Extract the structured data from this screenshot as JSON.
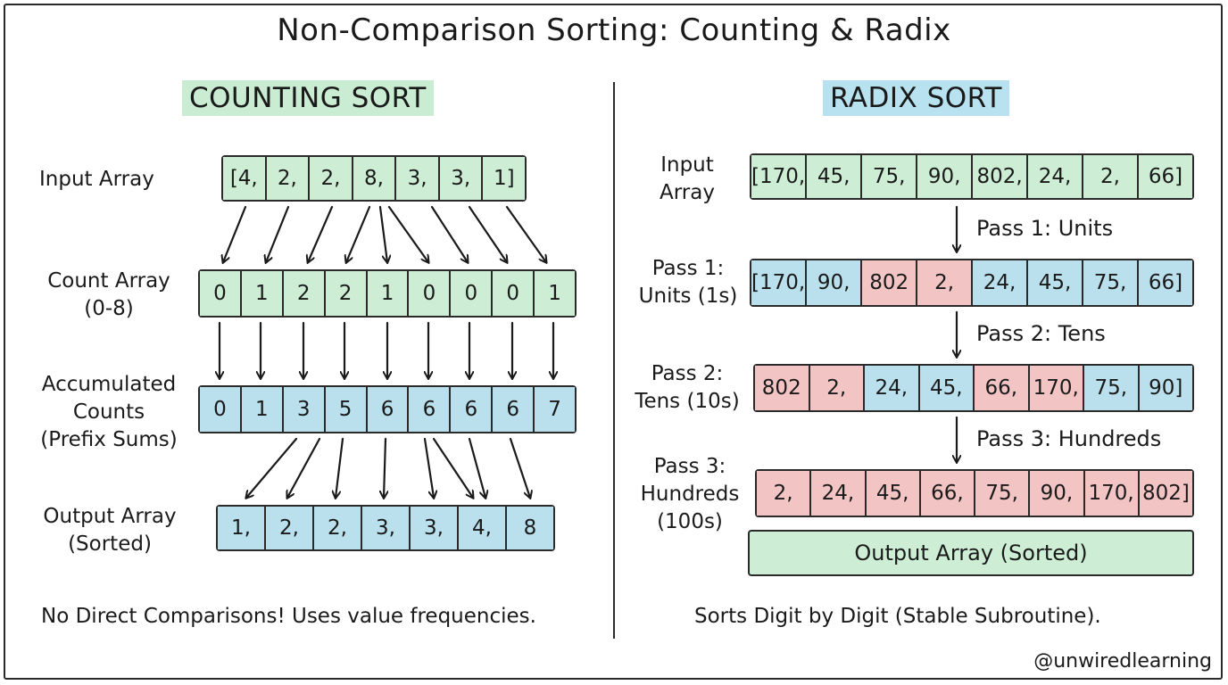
{
  "title": "Non-Comparison Sorting: Counting & Radix",
  "counting": {
    "heading": "COUNTING SORT",
    "input_label": "Input Array",
    "input_values": [
      "[4,",
      "2,",
      "2,",
      "8,",
      "3,",
      "3,",
      "1]"
    ],
    "count_label": [
      "Count Array",
      "(0-8)"
    ],
    "count_values": [
      "0",
      "1",
      "2",
      "2",
      "1",
      "0",
      "0",
      "0",
      "1"
    ],
    "accum_label": [
      "Accumulated",
      "Counts",
      "(Prefix Sums)"
    ],
    "accum_values": [
      "0",
      "1",
      "3",
      "5",
      "6",
      "6",
      "6",
      "6",
      "7"
    ],
    "output_label": [
      "Output Array",
      "(Sorted)"
    ],
    "output_values": [
      "1,",
      "2,",
      "2,",
      "3,",
      "3,",
      "4,",
      "8"
    ],
    "note": "No Direct Comparisons! Uses value frequencies."
  },
  "radix": {
    "heading": "RADIX SORT",
    "input_label": [
      "Input",
      "Array"
    ],
    "input_values": [
      "[170,",
      "45,",
      "75,",
      "90,",
      "802,",
      "24,",
      "2,",
      "66]"
    ],
    "pass1_arrow": "Pass 1: Units",
    "pass1_label": [
      "Pass 1:",
      "Units (1s)"
    ],
    "pass1_values": [
      "[170,",
      "90,",
      "802",
      "2,",
      "24,",
      "45,",
      "75,",
      "66]"
    ],
    "pass1_colors": [
      "b",
      "b",
      "r",
      "r",
      "b",
      "b",
      "b",
      "b"
    ],
    "pass2_arrow": "Pass 2: Tens",
    "pass2_label": [
      "Pass 2:",
      "Tens (10s)"
    ],
    "pass2_values": [
      "802",
      "2,",
      "24,",
      "45,",
      "66,",
      "170,",
      "75,",
      "90]"
    ],
    "pass2_colors": [
      "r",
      "r",
      "b",
      "b",
      "r",
      "r",
      "b",
      "b"
    ],
    "pass3_arrow": "Pass 3: Hundreds",
    "pass3_label": [
      "Pass 3:",
      "Hundreds",
      "(100s)"
    ],
    "pass3_values": [
      "2,",
      "24,",
      "45,",
      "66,",
      "75,",
      "90,",
      "170,",
      "802]"
    ],
    "pass3_colors": [
      "r",
      "r",
      "r",
      "r",
      "r",
      "r",
      "r",
      "r"
    ],
    "output": "Output Array (Sorted)",
    "note": "Sorts Digit by Digit (Stable Subroutine)."
  },
  "handle": "@unwiredlearning"
}
